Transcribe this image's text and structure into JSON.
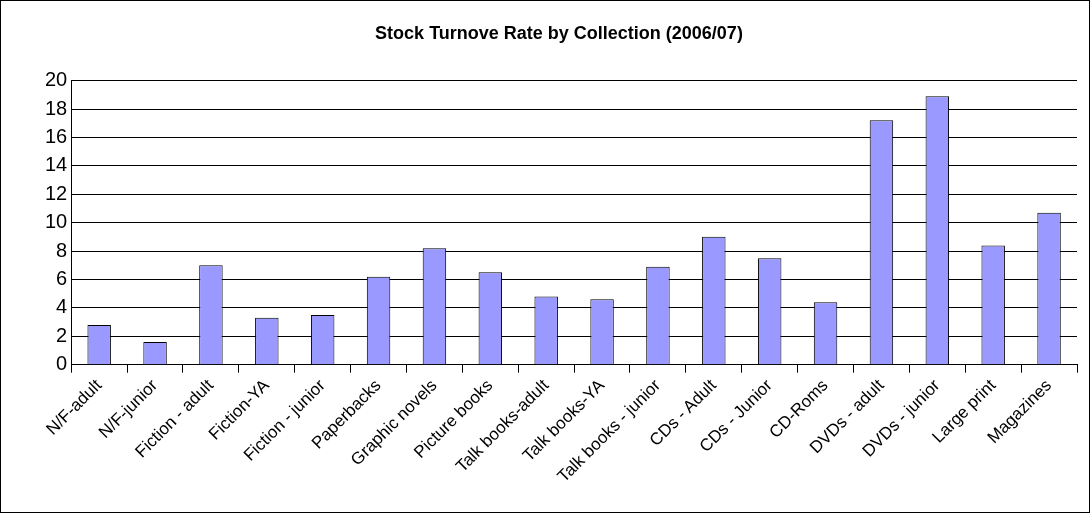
{
  "chart_data": {
    "type": "bar",
    "title": "Stock Turnove Rate by Collection (2006/07)",
    "categories": [
      "N/F-adult",
      "N/F-junior",
      "Fiction - adult",
      "Fiction-YA",
      "Fiction - junior",
      "Paperbacks",
      "Graphic novels",
      "Picture books",
      "Talk books-adult",
      "Talk books-YA",
      "Talk books - junior",
      "CDs - Adult",
      "CDs - Junior",
      "CD-Roms",
      "DVDs - adult",
      "DVDs - junior",
      "Large print",
      "Magazines"
    ],
    "values": [
      2.8,
      1.6,
      7.0,
      3.3,
      3.5,
      6.2,
      8.2,
      6.5,
      4.8,
      4.6,
      6.9,
      9.0,
      7.5,
      4.4,
      17.2,
      18.9,
      8.4,
      10.7
    ],
    "color": "#9999ff",
    "ylim": [
      0,
      20
    ],
    "yticks": [
      0,
      2,
      4,
      6,
      8,
      10,
      12,
      14,
      16,
      18,
      20
    ],
    "grid": "y",
    "legend": false
  }
}
